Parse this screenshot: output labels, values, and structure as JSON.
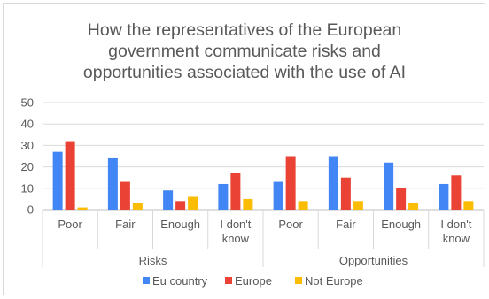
{
  "chart_data": {
    "type": "bar",
    "title_lines": [
      "How the representatives of the European",
      "government communicate risks and",
      "opportunities associated with the use of AI"
    ],
    "groups": [
      {
        "name": "Risks",
        "categories": [
          [
            "Poor"
          ],
          [
            "Fair"
          ],
          [
            "Enough"
          ],
          [
            "I don't",
            "know"
          ]
        ]
      },
      {
        "name": "Opportunities",
        "categories": [
          [
            "Poor"
          ],
          [
            "Fair"
          ],
          [
            "Enough"
          ],
          [
            "I don't",
            "know"
          ]
        ]
      }
    ],
    "series": [
      {
        "name": "Eu country",
        "color": "#4285f4",
        "values": [
          27,
          24,
          9,
          12,
          13,
          25,
          22,
          12
        ]
      },
      {
        "name": "Europe",
        "color": "#ea4335",
        "values": [
          32,
          13,
          4,
          17,
          25,
          15,
          10,
          16
        ]
      },
      {
        "name": "Not Europe",
        "color": "#fbbc04",
        "values": [
          1,
          3,
          6,
          5,
          4,
          4,
          3,
          4
        ]
      }
    ],
    "ylim": [
      0,
      50
    ],
    "yticks": [
      0,
      10,
      20,
      30,
      40,
      50
    ],
    "grid": true,
    "legend_position": "bottom"
  }
}
